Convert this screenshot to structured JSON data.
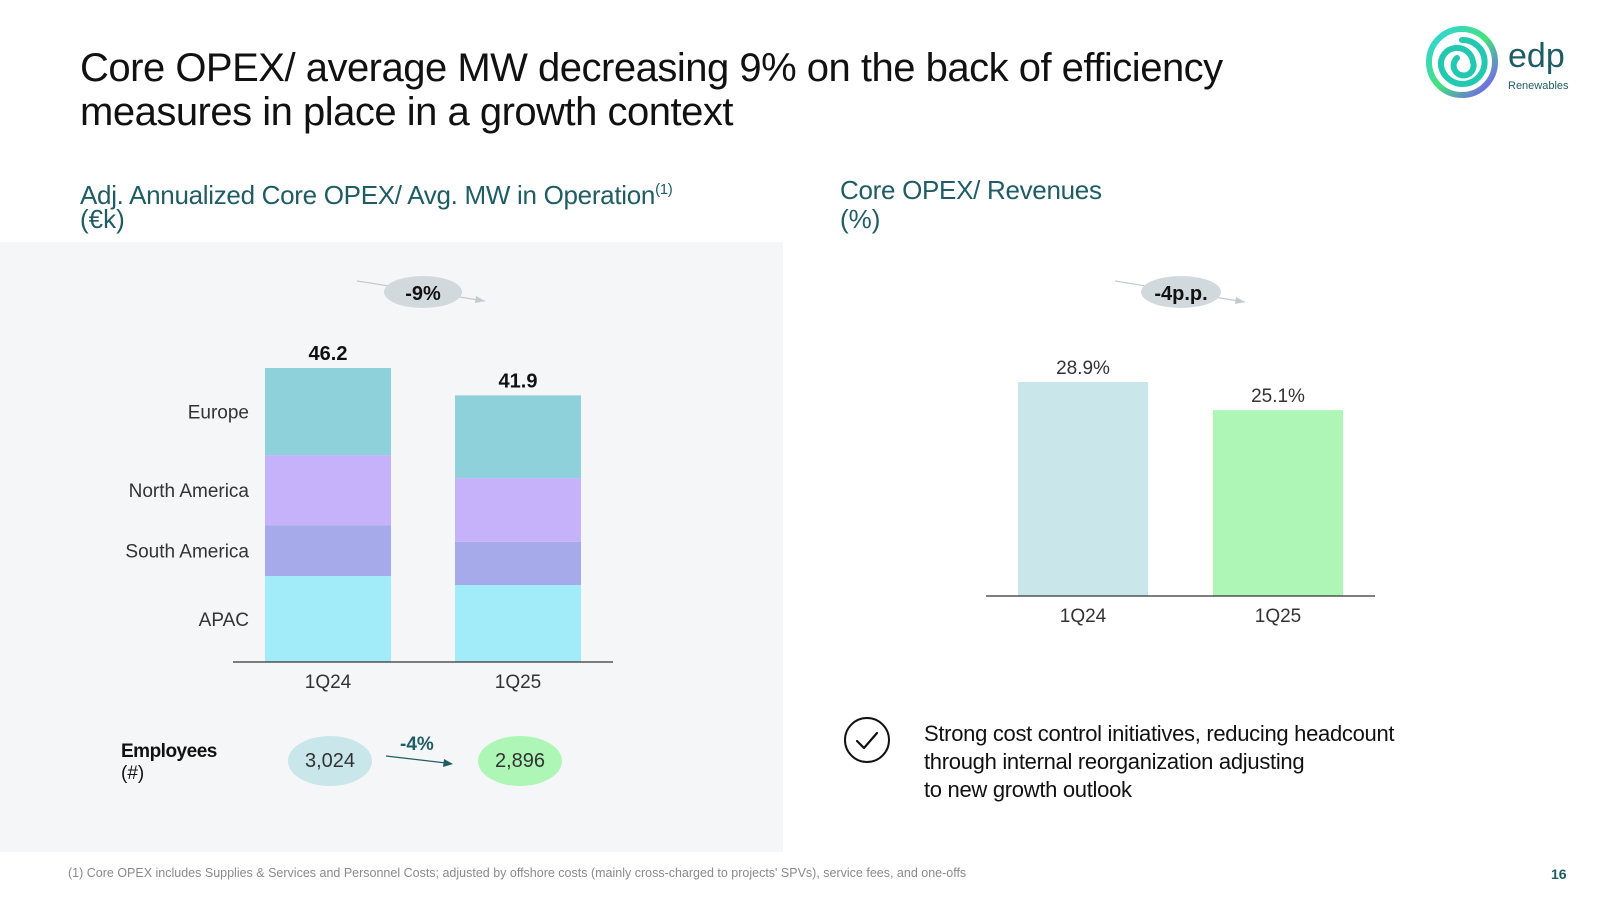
{
  "title": {
    "line1": "Core OPEX/ average MW decreasing 9% on the back of efficiency",
    "line2": "measures in place in a growth context"
  },
  "logo": {
    "name": "edp",
    "sub": "Renewables"
  },
  "colors": {
    "accent": "#1f5c63",
    "europe": "#8fd1db",
    "north_america": "#c6b2fb",
    "south_america": "#a6a9ea",
    "apac": "#a2ebf9",
    "rev_1q24": "#c9e6eb",
    "rev_1q25": "#adf6b6"
  },
  "left": {
    "title": "Adj. Annualized Core OPEX/ Avg. MW in Operation",
    "sup": "(1)",
    "unit": "(€k)",
    "change": "-9%",
    "employees": {
      "label": "Employees",
      "unit": "(#)",
      "change": "-4%",
      "v1q24": "3,024",
      "v1q25": "2,896"
    }
  },
  "right": {
    "title": "Core OPEX/ Revenues",
    "unit": "(%)",
    "change": "-4p.p."
  },
  "chart_data": [
    {
      "type": "bar",
      "stacked": true,
      "title": "Adj. Annualized Core OPEX/ Avg. MW in Operation(1) (€k)",
      "categories": [
        "1Q24",
        "1Q25"
      ],
      "totals": [
        46.2,
        41.9
      ],
      "total_labels": [
        "46.2",
        "41.9"
      ],
      "series": [
        {
          "name": "APAC",
          "values": [
            13.5,
            12.1
          ],
          "color": "#a2ebf9"
        },
        {
          "name": "South America",
          "values": [
            8.0,
            6.8
          ],
          "color": "#a6a9ea"
        },
        {
          "name": "North America",
          "values": [
            11.0,
            10.0
          ],
          "color": "#c6b2fb"
        },
        {
          "name": "Europe",
          "values": [
            13.7,
            13.0
          ],
          "color": "#8fd1db"
        }
      ],
      "ylim": [
        0,
        46.2
      ],
      "annotation": "-9%"
    },
    {
      "type": "bar",
      "title": "Core OPEX/ Revenues (%)",
      "categories": [
        "1Q24",
        "1Q25"
      ],
      "values": [
        28.9,
        25.1
      ],
      "labels": [
        "28.9%",
        "25.1%"
      ],
      "colors": [
        "#c9e6eb",
        "#adf6b6"
      ],
      "ylim": [
        0,
        28.9
      ],
      "annotation": "-4p.p."
    }
  ],
  "bullet": {
    "line1": "Strong cost control initiatives, reducing headcount",
    "line2": "through internal reorganization adjusting",
    "line3": "to new growth outlook"
  },
  "footnote": "(1) Core OPEX includes Supplies & Services and Personnel Costs; adjusted by offshore costs (mainly cross-charged to projects' SPVs), service fees, and one-offs",
  "page_number": "16"
}
